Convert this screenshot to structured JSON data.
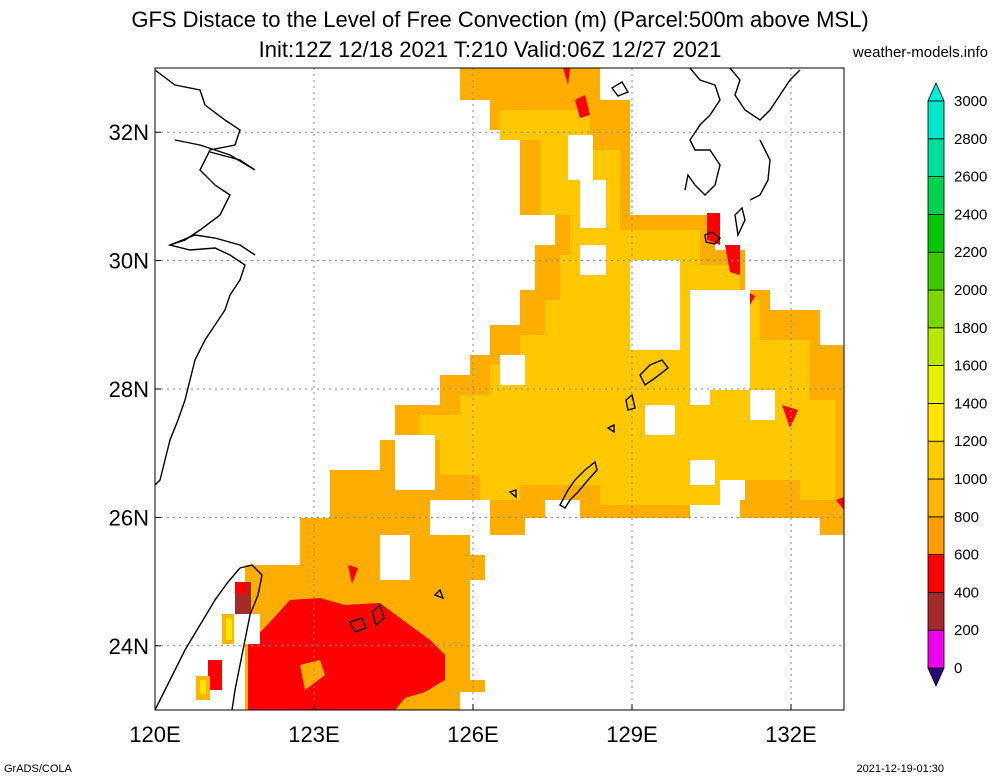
{
  "header": {
    "title_line1": "GFS Distace to the Level of Free Convection (m) (Parcel:500m above MSL)",
    "title_line2": "Init:12Z 12/18 2021 T:210 Valid:06Z 12/27 2021",
    "site": "weather-models.info"
  },
  "map": {
    "lon_range": [
      120,
      133
    ],
    "lat_range": [
      23,
      33
    ],
    "lon_ticks": [
      {
        "value": 120,
        "label": "120E"
      },
      {
        "value": 123,
        "label": "123E"
      },
      {
        "value": 126,
        "label": "126E"
      },
      {
        "value": 129,
        "label": "129E"
      },
      {
        "value": 132,
        "label": "132E"
      }
    ],
    "lat_ticks": [
      {
        "value": 24,
        "label": "24N"
      },
      {
        "value": 26,
        "label": "26N"
      },
      {
        "value": 28,
        "label": "28N"
      },
      {
        "value": 30,
        "label": "30N"
      },
      {
        "value": 32,
        "label": "32N"
      }
    ],
    "grid": "dotted"
  },
  "colorbar": {
    "levels": [
      0,
      200,
      400,
      600,
      800,
      1000,
      1200,
      1400,
      1600,
      1800,
      2000,
      2200,
      2400,
      2600,
      2800,
      3000
    ],
    "colors": [
      "#2a0a7a",
      "#ee00ee",
      "#a52a2a",
      "#ff0000",
      "#ff9a00",
      "#ffb400",
      "#ffcc00",
      "#ffe400",
      "#e8f000",
      "#b8e800",
      "#7ad800",
      "#3ec800",
      "#00c800",
      "#00d250",
      "#00dc9a",
      "#00e6c8"
    ],
    "under_color": "#2a0a7a",
    "over_color": "#00f0dc"
  },
  "footer": {
    "left": "GrADS/COLA",
    "right": "2021-12-19-01:30"
  }
}
